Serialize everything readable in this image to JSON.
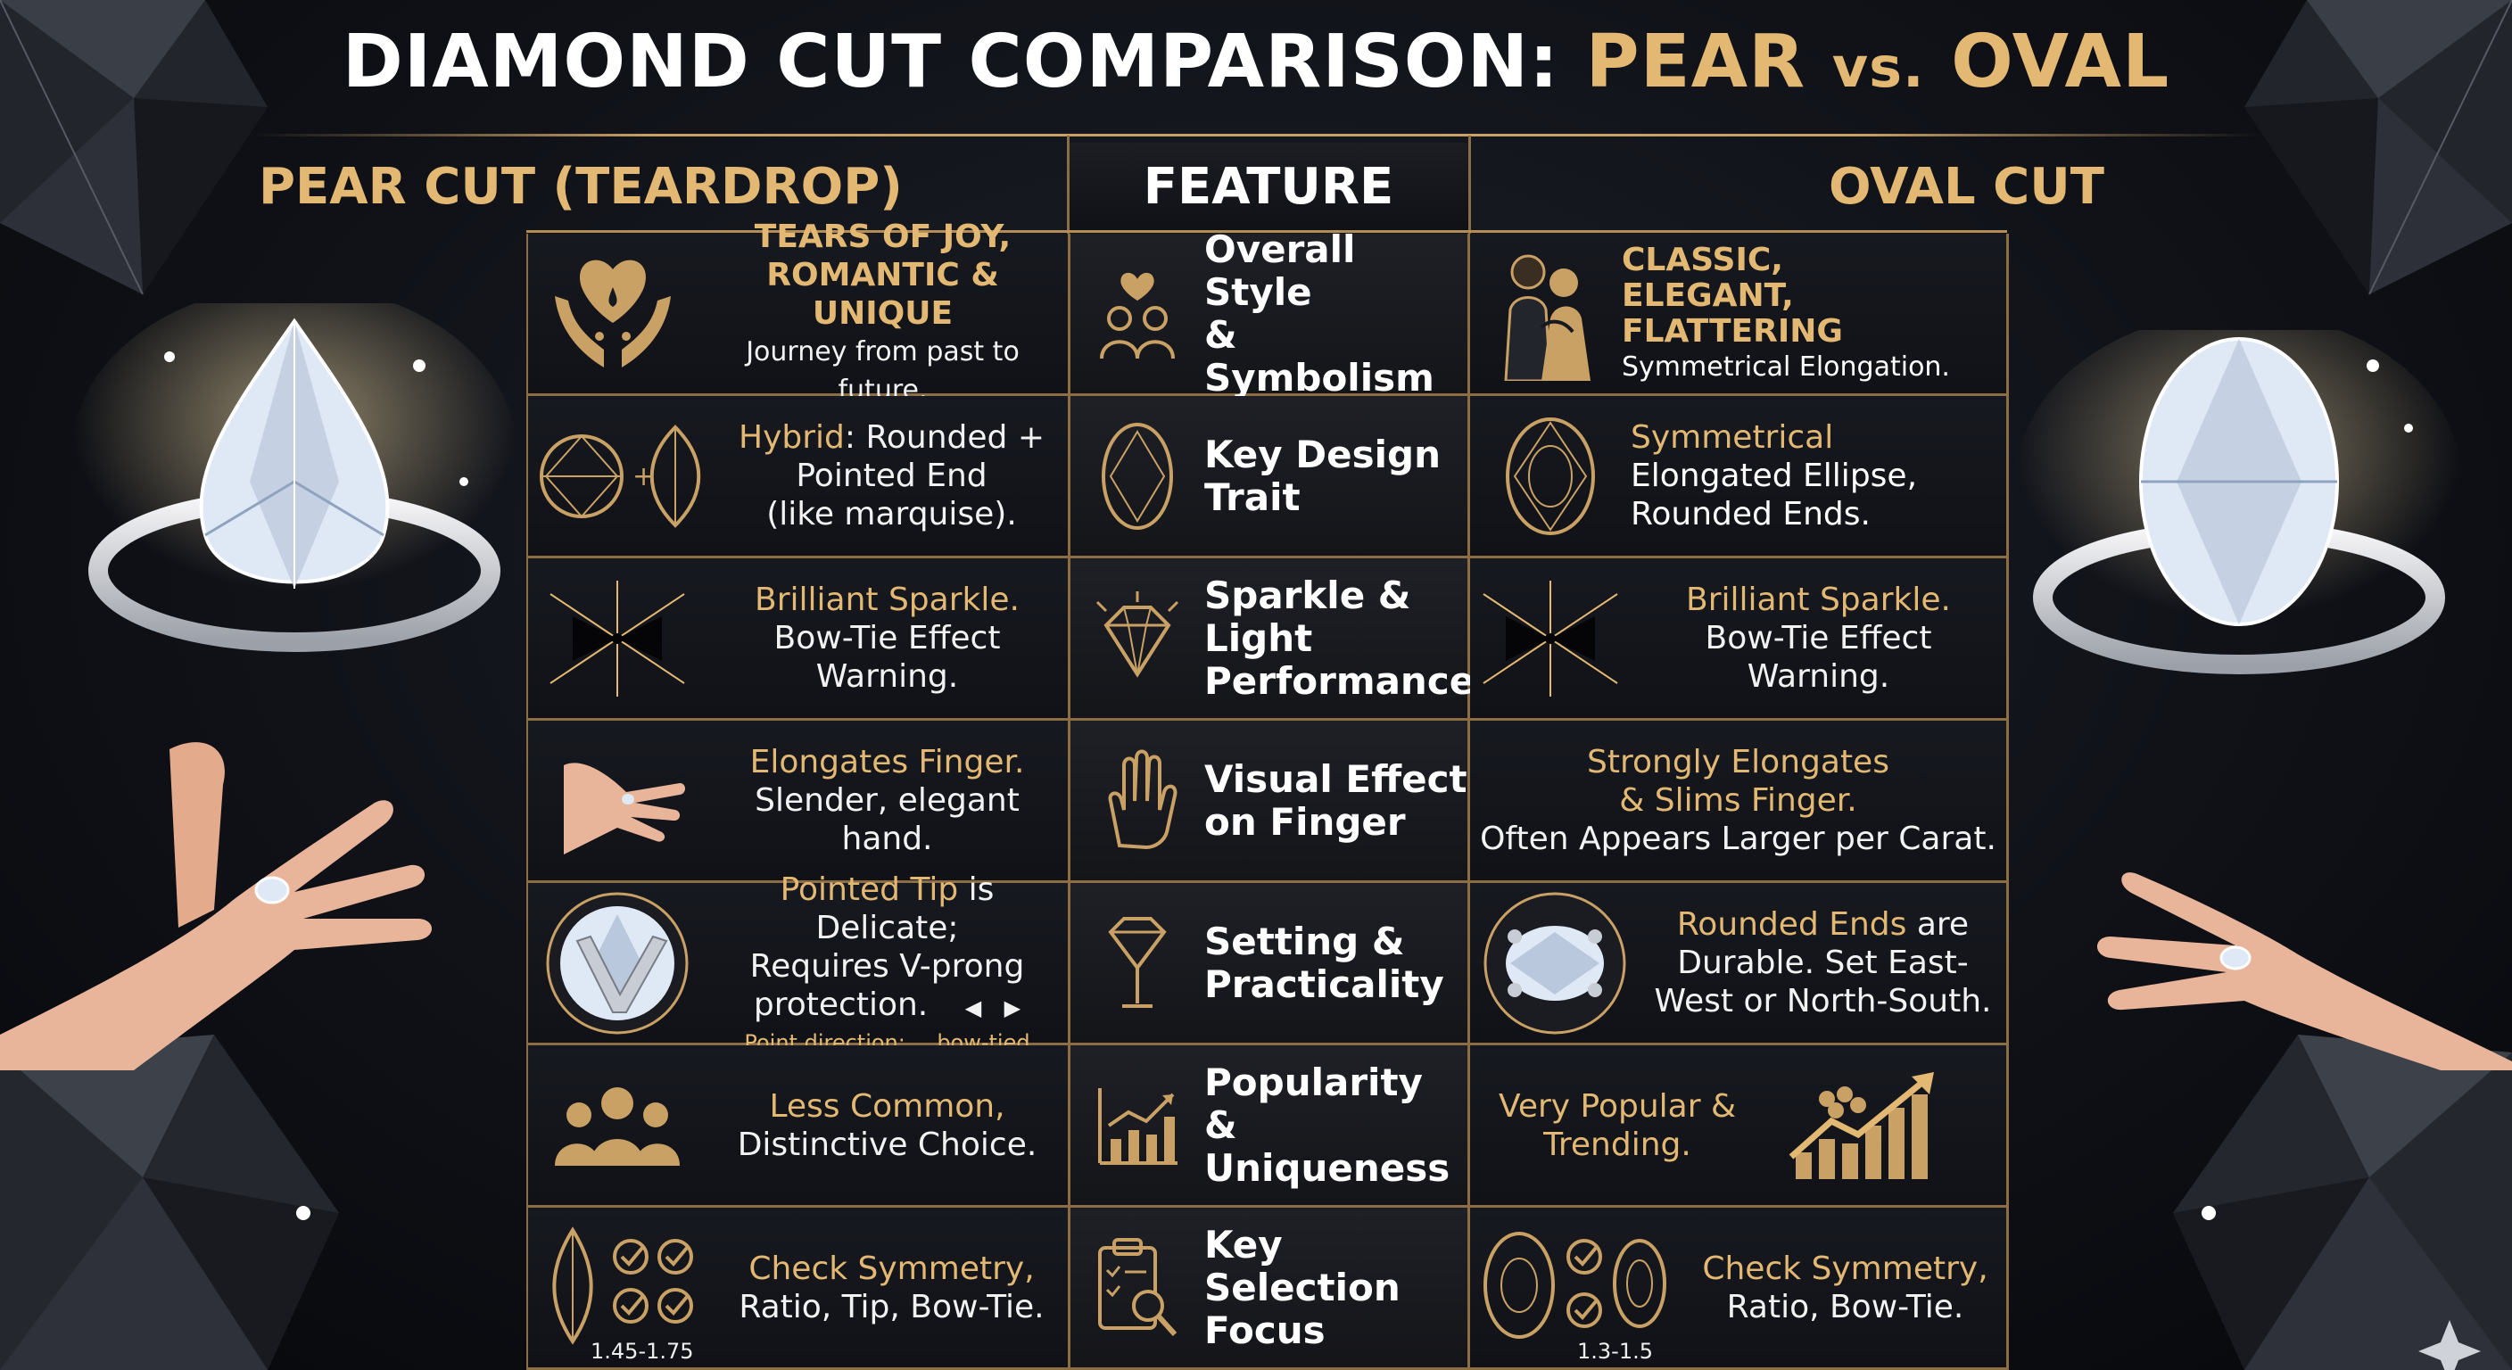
{
  "title": {
    "part1": "DIAMOND CUT COMPARISON: ",
    "part2": "PEAR ",
    "vs": "vs.",
    "part3": " OVAL"
  },
  "headers": {
    "left": "PEAR CUT (TEARDROP)",
    "middle": "FEATURE",
    "right": "OVAL CUT"
  },
  "rows": [
    {
      "pear": {
        "line1": "TEARS OF JOY,",
        "line2": "ROMANTIC & UNIQUE",
        "line3": "Journey from past to future."
      },
      "feature": {
        "line1": "Overall Style",
        "line2": "& Symbolism"
      },
      "oval": {
        "line1": "CLASSIC,",
        "line2": "ELEGANT,",
        "line3": "FLATTERING",
        "line4": "Symmetrical Elongation."
      }
    },
    {
      "pear": {
        "hl": "Hybrid",
        "line1": ": Rounded +",
        "line2": "Pointed End",
        "line3": "(like marquise)."
      },
      "feature": {
        "line1": "Key Design",
        "line2": "Trait"
      },
      "oval": {
        "line1": "Symmetrical",
        "line2": "Elongated Ellipse,",
        "line3": "Rounded Ends."
      }
    },
    {
      "pear": {
        "line1": "Brilliant Sparkle.",
        "line2": "Bow-Tie Effect Warning."
      },
      "feature": {
        "line1": "Sparkle & Light",
        "line2": "Performance"
      },
      "oval": {
        "line1": "Brilliant Sparkle.",
        "line2": "Bow-Tie Effect Warning."
      }
    },
    {
      "pear": {
        "line1": "Elongates Finger.",
        "line2": "Slender, elegant hand."
      },
      "feature": {
        "line1": "Visual Effect",
        "line2": "on Finger"
      },
      "oval": {
        "line1": "Strongly Elongates",
        "line2": "& Slims Finger.",
        "line3": "Often Appears Larger per Carat."
      }
    },
    {
      "pear": {
        "hl": "Pointed Tip",
        "line1": " is Delicate;",
        "line2": "Requires V-prong",
        "line3": "protection.",
        "note1": "Point direction:",
        "note2": "bow-tied"
      },
      "feature": {
        "line1": "Setting &",
        "line2": "Practicality"
      },
      "oval": {
        "hl": "Rounded Ends",
        "line1": " are",
        "line2": "Durable. Set East-",
        "line3": "West or North-South."
      }
    },
    {
      "pear": {
        "line1": "Less Common,",
        "line2": "Distinctive Choice."
      },
      "feature": {
        "line1": "Popularity &",
        "line2": "Uniqueness"
      },
      "oval": {
        "line1": "Very Popular &",
        "line2": "Trending."
      }
    },
    {
      "pear": {
        "line1": "Check Symmetry,",
        "line2": "Ratio, Tip, Bow-Tie.",
        "ratio": "1.45-1.75"
      },
      "feature": {
        "line1": "Key Selection",
        "line2": "Focus"
      },
      "oval": {
        "line1": "Check Symmetry,",
        "line2": "Ratio, Bow-Tie.",
        "ratio": "1.3-1.5"
      }
    }
  ],
  "colors": {
    "gold": "#e2b873",
    "border": "#8d6e44",
    "background": "#101218"
  }
}
